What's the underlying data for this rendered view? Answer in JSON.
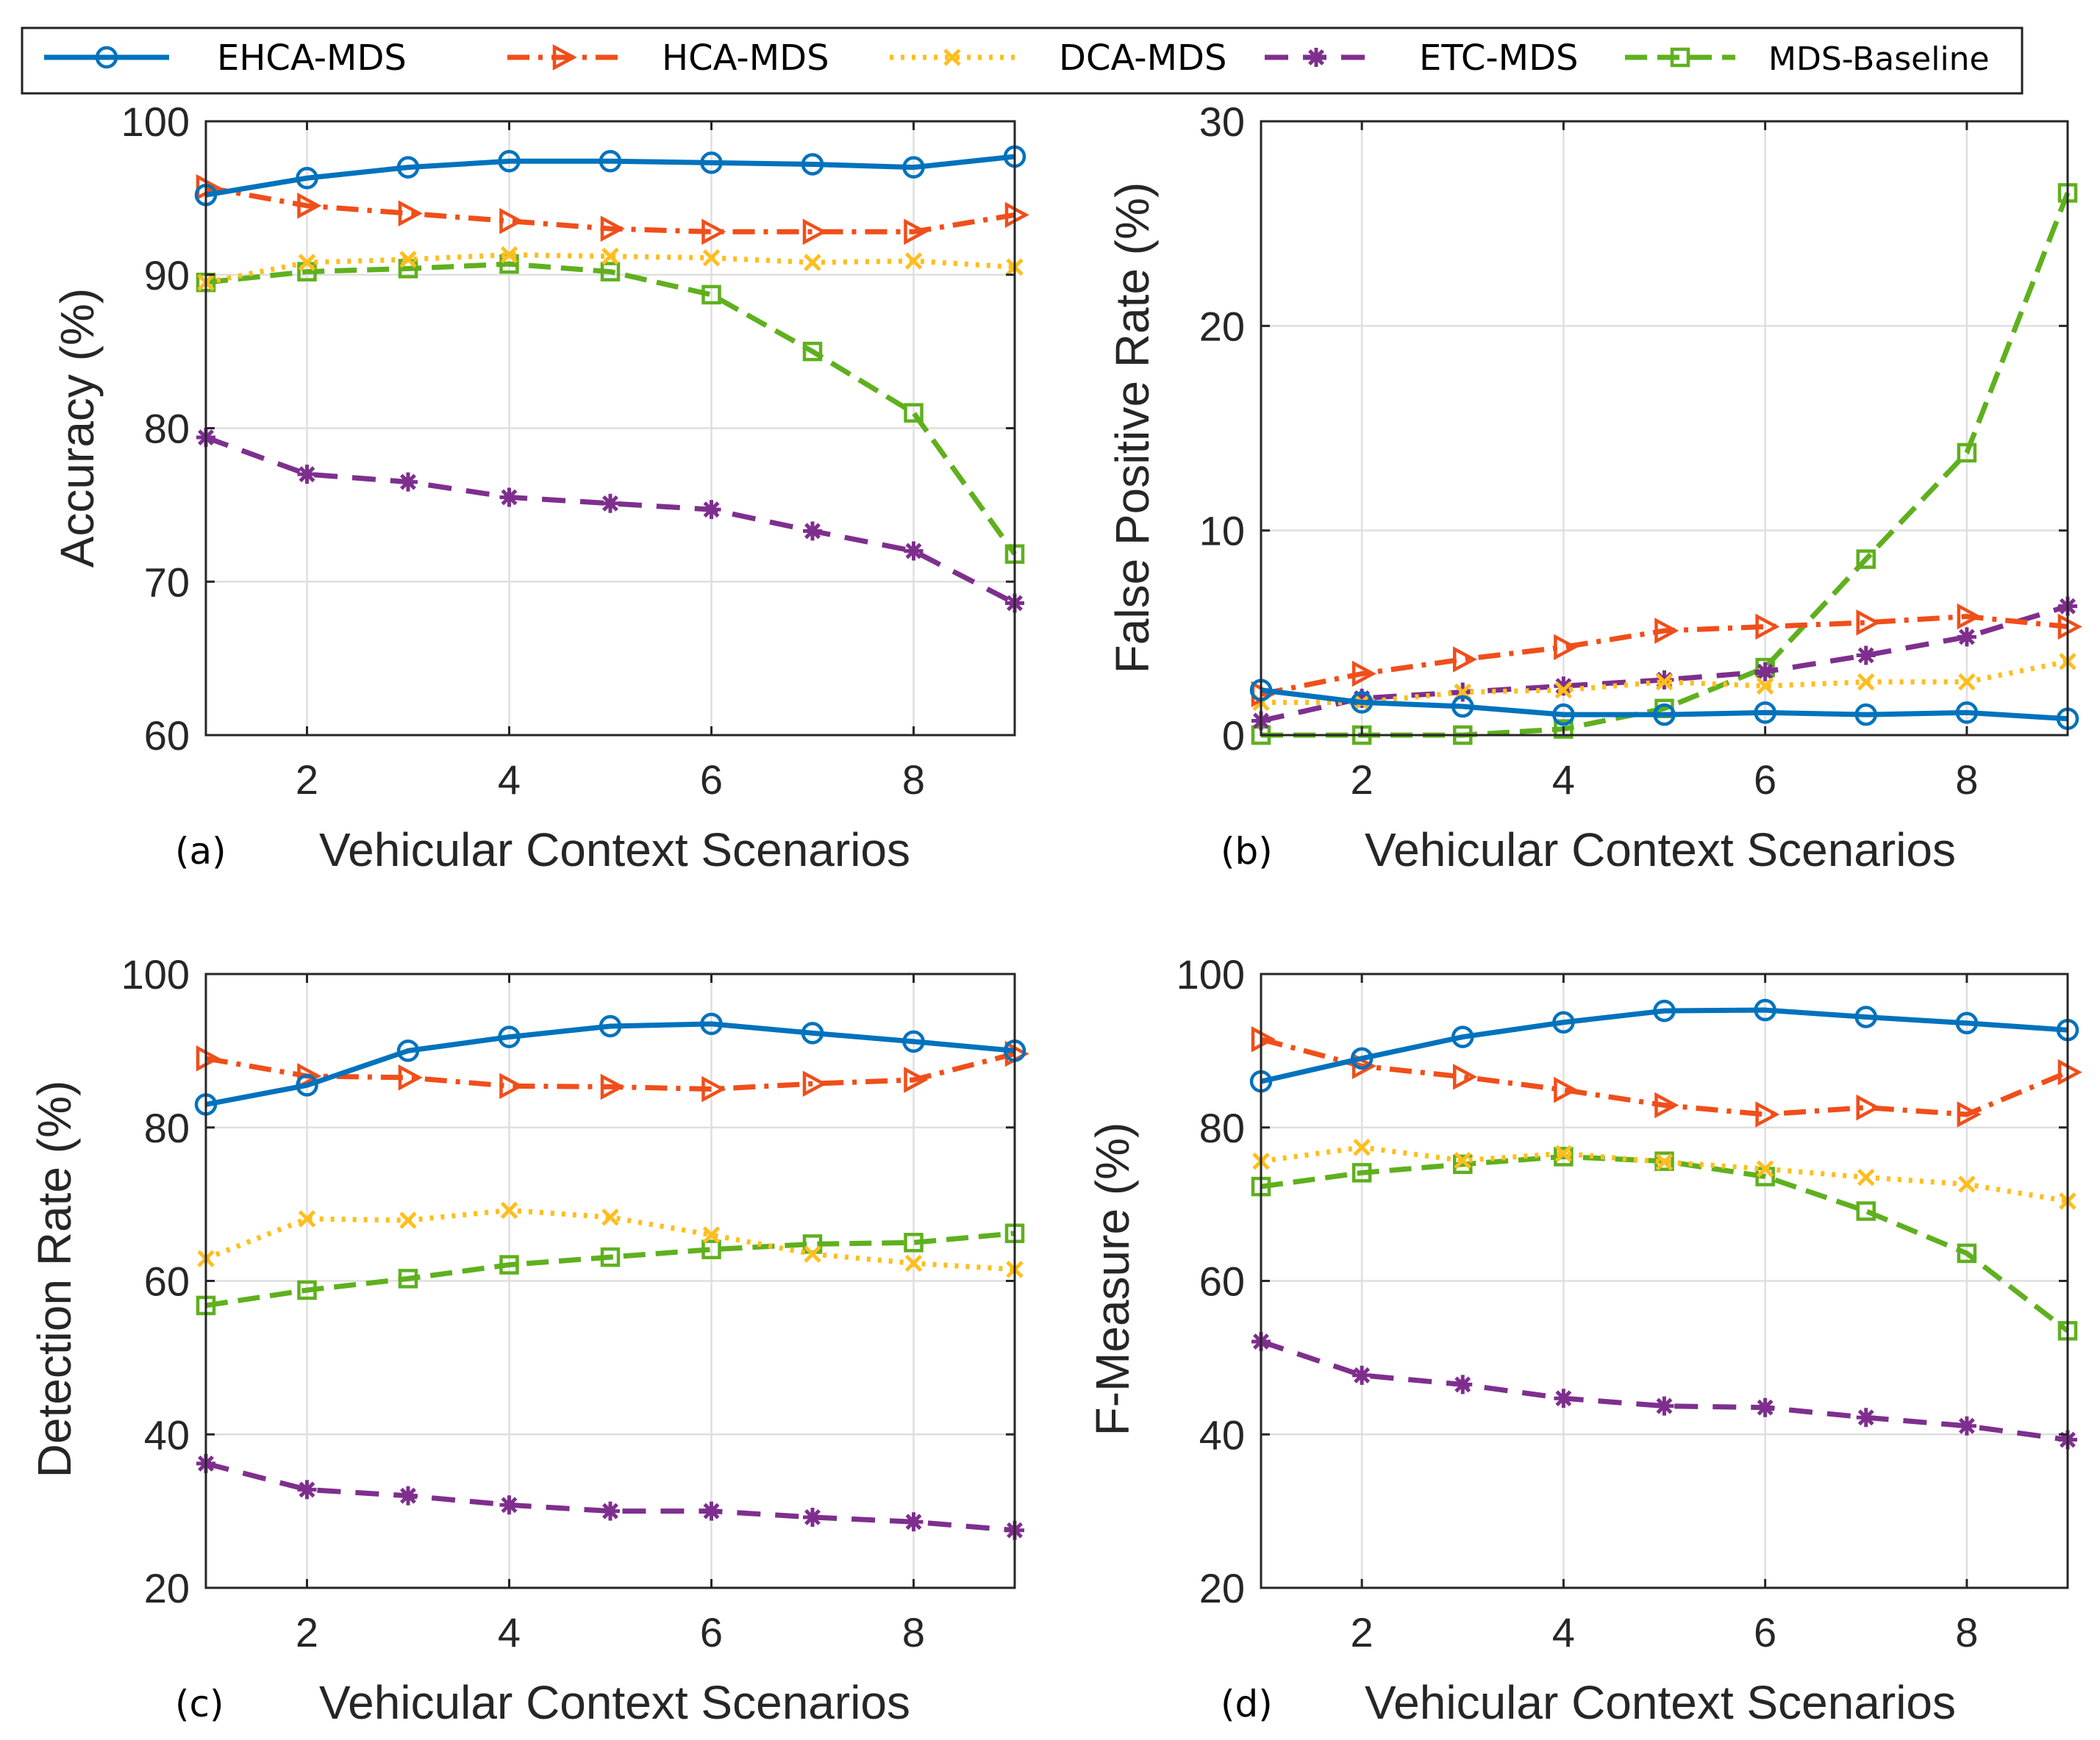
{
  "colors": {
    "EHCA-MDS": "#0072BD",
    "HCA-MDS": "#F04E1A",
    "DCA-MDS": "#FFBE1E",
    "ETC-MDS": "#7E2F8E",
    "MDS-Baseline": "#5FB01E"
  },
  "legend": {
    "items": [
      {
        "name": "EHCA-MDS",
        "label": "EHCA-MDS"
      },
      {
        "name": "HCA-MDS",
        "label": "HCA-MDS"
      },
      {
        "name": "DCA-MDS",
        "label": "DCA-MDS"
      },
      {
        "name": "ETC-MDS",
        "label": "ETC-MDS"
      },
      {
        "name": "MDS-Baseline",
        "label": "MDS-Baseline"
      }
    ]
  },
  "chart_data": [
    {
      "type": "line",
      "panel": "(a)",
      "xlabel": "Vehicular Context Scenarios",
      "ylabel": "Accuracy (%)",
      "xlim": [
        1,
        9
      ],
      "ylim": [
        60,
        100
      ],
      "xticks": [
        2,
        4,
        6,
        8
      ],
      "yticks": [
        60,
        70,
        80,
        90,
        100
      ],
      "x": [
        1,
        2,
        3,
        4,
        5,
        6,
        7,
        8,
        9
      ],
      "series": [
        {
          "name": "EHCA-MDS",
          "values": [
            95.2,
            96.3,
            97.0,
            97.4,
            97.4,
            97.3,
            97.2,
            97.0,
            97.7
          ]
        },
        {
          "name": "HCA-MDS",
          "values": [
            95.7,
            94.5,
            94.0,
            93.5,
            93.0,
            92.8,
            92.8,
            92.8,
            93.9
          ]
        },
        {
          "name": "DCA-MDS",
          "values": [
            89.5,
            90.8,
            91.0,
            91.3,
            91.2,
            91.1,
            90.8,
            90.9,
            90.5
          ]
        },
        {
          "name": "ETC-MDS",
          "values": [
            79.4,
            77.0,
            76.5,
            75.5,
            75.1,
            74.7,
            73.3,
            72.0,
            68.6
          ]
        },
        {
          "name": "MDS-Baseline",
          "values": [
            89.5,
            90.2,
            90.4,
            90.7,
            90.2,
            88.7,
            85.0,
            81.0,
            71.8
          ]
        }
      ]
    },
    {
      "type": "line",
      "panel": "(b)",
      "xlabel": "Vehicular Context Scenarios",
      "ylabel": "False Positive Rate (%)",
      "xlim": [
        1,
        9
      ],
      "ylim": [
        0,
        30
      ],
      "xticks": [
        2,
        4,
        6,
        8
      ],
      "yticks": [
        0,
        10,
        20,
        30
      ],
      "x": [
        1,
        2,
        3,
        4,
        5,
        6,
        7,
        8,
        9
      ],
      "series": [
        {
          "name": "EHCA-MDS",
          "values": [
            2.2,
            1.6,
            1.4,
            1.0,
            1.0,
            1.1,
            1.0,
            1.1,
            0.8
          ]
        },
        {
          "name": "HCA-MDS",
          "values": [
            2.0,
            3.0,
            3.7,
            4.3,
            5.1,
            5.3,
            5.5,
            5.8,
            5.3
          ]
        },
        {
          "name": "DCA-MDS",
          "values": [
            1.6,
            1.6,
            2.1,
            2.2,
            2.6,
            2.4,
            2.6,
            2.6,
            3.6
          ]
        },
        {
          "name": "ETC-MDS",
          "values": [
            0.7,
            1.8,
            2.1,
            2.4,
            2.7,
            3.1,
            3.9,
            4.8,
            6.3
          ]
        },
        {
          "name": "MDS-Baseline",
          "values": [
            0.0,
            0.0,
            0.0,
            0.3,
            1.3,
            3.3,
            8.6,
            13.8,
            26.5
          ]
        }
      ]
    },
    {
      "type": "line",
      "panel": "(c)",
      "xlabel": "Vehicular Context Scenarios",
      "ylabel": "Detection Rate (%)",
      "xlim": [
        1,
        9
      ],
      "ylim": [
        20,
        100
      ],
      "xticks": [
        2,
        4,
        6,
        8
      ],
      "yticks": [
        20,
        40,
        60,
        80,
        100
      ],
      "x": [
        1,
        2,
        3,
        4,
        5,
        6,
        7,
        8,
        9
      ],
      "series": [
        {
          "name": "EHCA-MDS",
          "values": [
            83.0,
            85.5,
            90.0,
            91.8,
            93.2,
            93.5,
            92.3,
            91.2,
            90.0
          ]
        },
        {
          "name": "HCA-MDS",
          "values": [
            89.0,
            86.7,
            86.5,
            85.4,
            85.3,
            85.0,
            85.7,
            86.2,
            89.6
          ]
        },
        {
          "name": "DCA-MDS",
          "values": [
            62.9,
            68.1,
            67.9,
            69.2,
            68.3,
            66.0,
            63.5,
            62.3,
            61.5
          ]
        },
        {
          "name": "ETC-MDS",
          "values": [
            36.2,
            32.8,
            32.0,
            30.8,
            30.0,
            30.0,
            29.2,
            28.6,
            27.5
          ]
        },
        {
          "name": "MDS-Baseline",
          "values": [
            56.8,
            58.8,
            60.3,
            62.1,
            63.1,
            64.1,
            64.8,
            65.0,
            66.2
          ]
        }
      ]
    },
    {
      "type": "line",
      "panel": "(d)",
      "xlabel": "Vehicular Context Scenarios",
      "ylabel": "F-Measure (%)",
      "xlim": [
        1,
        9
      ],
      "ylim": [
        20,
        100
      ],
      "xticks": [
        2,
        4,
        6,
        8
      ],
      "yticks": [
        20,
        40,
        60,
        80,
        100
      ],
      "x": [
        1,
        2,
        3,
        4,
        5,
        6,
        7,
        8,
        9
      ],
      "series": [
        {
          "name": "EHCA-MDS",
          "values": [
            86.0,
            89.0,
            91.8,
            93.7,
            95.2,
            95.3,
            94.4,
            93.6,
            92.7
          ]
        },
        {
          "name": "HCA-MDS",
          "values": [
            91.5,
            88.0,
            86.6,
            84.9,
            82.9,
            81.7,
            82.6,
            81.7,
            87.2
          ]
        },
        {
          "name": "DCA-MDS",
          "values": [
            75.6,
            77.4,
            75.7,
            76.6,
            75.5,
            74.6,
            73.5,
            72.6,
            70.4
          ]
        },
        {
          "name": "ETC-MDS",
          "values": [
            52.1,
            47.7,
            46.5,
            44.7,
            43.7,
            43.5,
            42.2,
            41.1,
            39.3
          ]
        },
        {
          "name": "MDS-Baseline",
          "values": [
            72.3,
            74.1,
            75.2,
            76.2,
            75.6,
            73.6,
            69.1,
            63.6,
            53.5
          ]
        }
      ]
    }
  ]
}
